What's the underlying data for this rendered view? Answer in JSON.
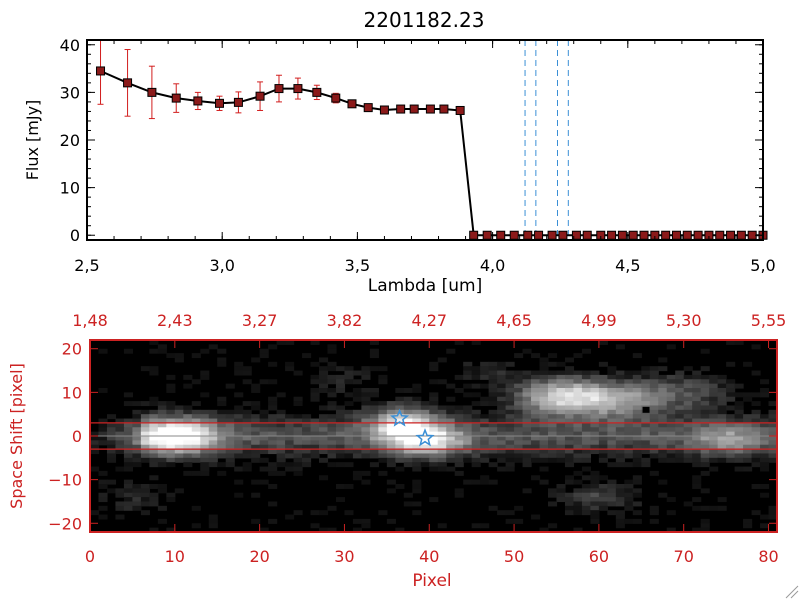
{
  "title": "2201182.23",
  "colors": {
    "data_line": "#000000",
    "marker": "#8b1a1a",
    "error_bar": "#d21e1e",
    "line_marker": "#3a8fd6",
    "image_frame": "#cc2222",
    "image_text": "#cc2222",
    "star": "#3a8fd6"
  },
  "chart_data": [
    {
      "type": "line",
      "title": "2201182.23",
      "xlabel": "Lambda [um]",
      "ylabel": "Flux [mJy]",
      "xlim": [
        2.5,
        5.0
      ],
      "ylim": [
        -1,
        41
      ],
      "x_ticks": [
        2.5,
        3.0,
        3.5,
        4.0,
        4.5,
        5.0
      ],
      "x_tick_labels": [
        "2,5",
        "3,0",
        "3,5",
        "4,0",
        "4,5",
        "5,0"
      ],
      "y_ticks": [
        0,
        10,
        20,
        30,
        40
      ],
      "y_tick_labels": [
        "0",
        "10",
        "20",
        "30",
        "40"
      ],
      "grid": false,
      "series": [
        {
          "x": [
            2.55,
            2.65,
            2.74,
            2.83,
            2.91,
            2.99,
            3.06,
            3.14,
            3.21,
            3.28,
            3.35,
            3.42,
            3.48,
            3.54,
            3.6,
            3.66,
            3.71,
            3.77,
            3.82,
            3.88,
            3.93,
            3.98,
            4.03,
            4.08,
            4.13,
            4.17,
            4.22,
            4.26,
            4.31,
            4.35,
            4.4,
            4.44,
            4.48,
            4.52,
            4.56,
            4.6,
            4.64,
            4.68,
            4.72,
            4.76,
            4.8,
            4.84,
            4.88,
            4.92,
            4.96,
            5.0
          ],
          "y": [
            34.5,
            32.0,
            30.0,
            28.8,
            28.2,
            27.7,
            27.9,
            29.2,
            30.8,
            30.8,
            30.0,
            28.8,
            27.6,
            26.8,
            26.3,
            26.5,
            26.5,
            26.5,
            26.5,
            26.2,
            0.0,
            0.0,
            0.0,
            0.0,
            0.0,
            0.0,
            0.0,
            0.0,
            0.0,
            0.0,
            0.0,
            0.0,
            0.0,
            0.0,
            0.0,
            0.0,
            0.0,
            0.0,
            0.0,
            0.0,
            0.0,
            0.0,
            0.0,
            0.0,
            0.0,
            0.0
          ],
          "yerr": [
            7.0,
            7.0,
            5.5,
            3.0,
            1.8,
            1.5,
            2.2,
            3.0,
            2.8,
            2.2,
            1.5,
            1.0,
            0.5,
            0.4,
            0.3,
            0.3,
            0.3,
            0.3,
            0.3,
            0.3,
            0.3,
            0.3,
            0.3,
            0.3,
            0.3,
            0.3,
            0.3,
            0.3,
            0.3,
            0.3,
            0.3,
            0.3,
            0.3,
            0.3,
            0.3,
            0.3,
            0.3,
            0.3,
            0.3,
            0.3,
            0.3,
            0.3,
            0.3,
            0.3,
            0.3,
            0.3
          ]
        }
      ],
      "vertical_lines": [
        4.12,
        4.16,
        4.24,
        4.28
      ]
    },
    {
      "type": "heatmap",
      "xlabel": "Pixel",
      "ylabel": "Space Shift [pixel]",
      "xlim": [
        0,
        81
      ],
      "ylim": [
        -22,
        22
      ],
      "x_ticks": [
        0,
        10,
        20,
        30,
        40,
        50,
        60,
        70,
        80
      ],
      "x_tick_labels": [
        "0",
        "10",
        "20",
        "30",
        "40",
        "50",
        "60",
        "70",
        "80"
      ],
      "y_ticks": [
        -20,
        -10,
        0,
        10,
        20
      ],
      "y_tick_labels": [
        "−20",
        "−10",
        "0",
        "10",
        "20"
      ],
      "top_tick_labels": [
        "1,48",
        "2,43",
        "3,27",
        "3,82",
        "4,27",
        "4,65",
        "4,99",
        "5,30",
        "5,55"
      ],
      "aperture_rows": [
        3,
        -3
      ],
      "center_row": 0,
      "sources": [
        {
          "x": 10.0,
          "y": 0.0,
          "w": 3.5,
          "h": 2.8,
          "amp": 0.95
        },
        {
          "x": 37.0,
          "y": 2.5,
          "w": 3.0,
          "h": 3.0,
          "amp": 0.75
        },
        {
          "x": 40.0,
          "y": -1.5,
          "w": 3.0,
          "h": 2.5,
          "amp": 0.6
        },
        {
          "x": 56.0,
          "y": 9.0,
          "w": 4.0,
          "h": 3.0,
          "amp": 0.85
        },
        {
          "x": 63.0,
          "y": 8.0,
          "w": 3.5,
          "h": 3.0,
          "amp": 0.45
        },
        {
          "x": 70.0,
          "y": 10.0,
          "w": 4.0,
          "h": 3.0,
          "amp": 0.3
        },
        {
          "x": 75.0,
          "y": -1.0,
          "w": 3.0,
          "h": 2.5,
          "amp": 0.35
        },
        {
          "x": 60.0,
          "y": -14.0,
          "w": 3.0,
          "h": 2.5,
          "amp": 0.25
        },
        {
          "x": 5.0,
          "y": -14.0,
          "w": 2.5,
          "h": 2.5,
          "amp": 0.15
        },
        {
          "x": 30.0,
          "y": 13.0,
          "w": 2.5,
          "h": 2.5,
          "amp": 0.12
        },
        {
          "x": 47.0,
          "y": 15.0,
          "w": 2.5,
          "h": 2.0,
          "amp": 0.15
        }
      ],
      "stars": [
        {
          "x": 36.5,
          "y": 4.0
        },
        {
          "x": 39.5,
          "y": -0.5
        }
      ],
      "dark_pixel": {
        "x": 65.5,
        "y": 6.0
      }
    }
  ]
}
